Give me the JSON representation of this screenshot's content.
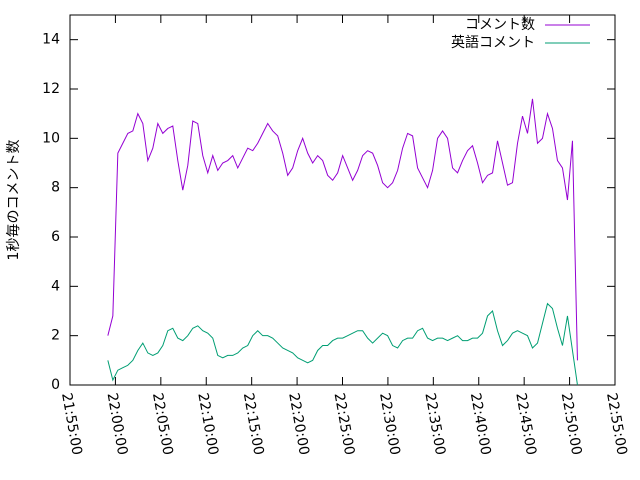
{
  "chart_data": {
    "type": "line",
    "ylabel": "1秒毎のコメント数",
    "x": [
      "21:59:10",
      "21:59:43",
      "22:00:16",
      "22:00:49",
      "22:01:22",
      "22:01:55",
      "22:02:28",
      "22:03:01",
      "22:03:34",
      "22:04:07",
      "22:04:40",
      "22:05:13",
      "22:05:46",
      "22:06:19",
      "22:06:52",
      "22:07:25",
      "22:07:58",
      "22:08:31",
      "22:09:04",
      "22:09:37",
      "22:10:10",
      "22:10:43",
      "22:11:16",
      "22:11:49",
      "22:12:22",
      "22:12:55",
      "22:13:28",
      "22:14:01",
      "22:14:34",
      "22:15:07",
      "22:15:40",
      "22:16:13",
      "22:16:46",
      "22:17:19",
      "22:17:52",
      "22:18:25",
      "22:18:58",
      "22:19:31",
      "22:20:04",
      "22:20:37",
      "22:21:10",
      "22:21:43",
      "22:22:16",
      "22:22:49",
      "22:23:22",
      "22:23:55",
      "22:24:28",
      "22:25:01",
      "22:25:34",
      "22:26:07",
      "22:26:40",
      "22:27:13",
      "22:27:46",
      "22:28:19",
      "22:28:52",
      "22:29:25",
      "22:29:58",
      "22:30:31",
      "22:31:04",
      "22:31:37",
      "22:32:10",
      "22:32:43",
      "22:33:16",
      "22:33:49",
      "22:34:22",
      "22:34:55",
      "22:35:28",
      "22:36:01",
      "22:36:34",
      "22:37:07",
      "22:37:40",
      "22:38:13",
      "22:38:46",
      "22:39:19",
      "22:39:52",
      "22:40:25",
      "22:40:58",
      "22:41:31",
      "22:42:04",
      "22:42:37",
      "22:43:10",
      "22:43:43",
      "22:44:16",
      "22:44:49",
      "22:45:22",
      "22:45:55",
      "22:46:28",
      "22:47:01",
      "22:47:34",
      "22:48:07",
      "22:48:40",
      "22:49:13",
      "22:49:46",
      "22:50:19",
      "22:50:52"
    ],
    "series": [
      {
        "name": "コメント数",
        "color": "#9400d3",
        "values": [
          2.0,
          2.8,
          9.4,
          9.8,
          10.2,
          10.3,
          11.0,
          10.6,
          9.1,
          9.6,
          10.6,
          10.2,
          10.4,
          10.5,
          9.1,
          7.9,
          8.9,
          10.7,
          10.6,
          9.3,
          8.6,
          9.3,
          8.7,
          9.0,
          9.1,
          9.3,
          8.8,
          9.2,
          9.6,
          9.5,
          9.8,
          10.2,
          10.6,
          10.3,
          10.1,
          9.4,
          8.5,
          8.8,
          9.5,
          10.0,
          9.4,
          9.0,
          9.3,
          9.1,
          8.5,
          8.3,
          8.6,
          9.3,
          8.8,
          8.3,
          8.7,
          9.3,
          9.5,
          9.4,
          8.9,
          8.2,
          8.0,
          8.2,
          8.7,
          9.6,
          10.2,
          10.1,
          8.8,
          8.4,
          8.0,
          8.7,
          10.0,
          10.3,
          10.0,
          8.8,
          8.6,
          9.1,
          9.5,
          9.7,
          9.0,
          8.2,
          8.5,
          8.6,
          9.9,
          9.0,
          8.1,
          8.2,
          9.8,
          10.9,
          10.2,
          11.6,
          9.8,
          10.0,
          11.0,
          10.4,
          9.1,
          8.8,
          7.5,
          9.9,
          1.0
        ]
      },
      {
        "name": "英語コメント",
        "color": "#009e73",
        "values": [
          1.0,
          0.2,
          0.6,
          0.7,
          0.8,
          1.0,
          1.4,
          1.7,
          1.3,
          1.2,
          1.3,
          1.6,
          2.2,
          2.3,
          1.9,
          1.8,
          2.0,
          2.3,
          2.4,
          2.2,
          2.1,
          1.9,
          1.2,
          1.1,
          1.2,
          1.2,
          1.3,
          1.5,
          1.6,
          2.0,
          2.2,
          2.0,
          2.0,
          1.9,
          1.7,
          1.5,
          1.4,
          1.3,
          1.1,
          1.0,
          0.9,
          1.0,
          1.4,
          1.6,
          1.6,
          1.8,
          1.9,
          1.9,
          2.0,
          2.1,
          2.2,
          2.2,
          1.9,
          1.7,
          1.9,
          2.1,
          2.0,
          1.6,
          1.5,
          1.8,
          1.9,
          1.9,
          2.2,
          2.3,
          1.9,
          1.8,
          1.9,
          1.9,
          1.8,
          1.9,
          2.0,
          1.8,
          1.8,
          1.9,
          1.9,
          2.1,
          2.8,
          3.0,
          2.2,
          1.6,
          1.8,
          2.1,
          2.2,
          2.1,
          2.0,
          1.5,
          1.7,
          2.5,
          3.3,
          3.1,
          2.3,
          1.6,
          2.8,
          1.4,
          0.0
        ]
      }
    ],
    "xlim": [
      "21:55:00",
      "22:55:00"
    ],
    "xticks": [
      "21:55:00",
      "22:00:00",
      "22:05:00",
      "22:10:00",
      "22:15:00",
      "22:20:00",
      "22:25:00",
      "22:30:00",
      "22:35:00",
      "22:40:00",
      "22:45:00",
      "22:50:00",
      "22:55:00"
    ],
    "ylim": [
      0,
      15
    ],
    "yticks": [
      0,
      2,
      4,
      6,
      8,
      10,
      12,
      14
    ],
    "legend": "top-right"
  }
}
